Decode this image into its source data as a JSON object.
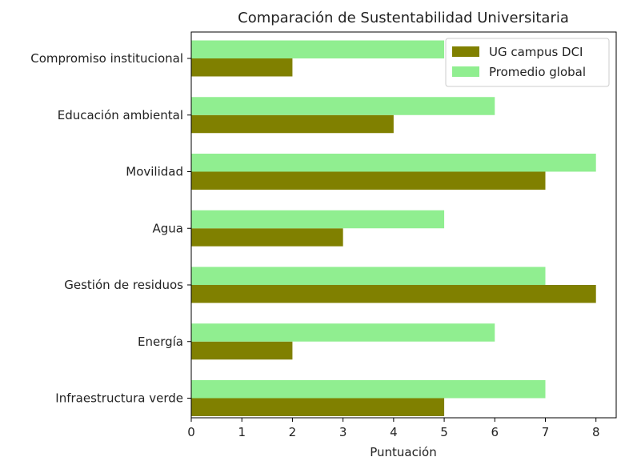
{
  "chart_data": {
    "type": "bar",
    "orientation": "horizontal",
    "title": "Comparación de Sustentabilidad Universitaria",
    "xlabel": "Puntuación",
    "ylabel": "",
    "xlim": [
      0,
      8.4
    ],
    "xticks": [
      0,
      1,
      2,
      3,
      4,
      5,
      6,
      7,
      8
    ],
    "grid": false,
    "legend_position": "top-right",
    "categories": [
      "Infraestructura verde",
      "Energía",
      "Gestión de residuos",
      "Agua",
      "Movilidad",
      "Educación ambiental",
      "Compromiso institucional"
    ],
    "series": [
      {
        "name": "UG campus DCI",
        "color": "#808000",
        "values": [
          5,
          2,
          8,
          3,
          7,
          4,
          2
        ]
      },
      {
        "name": "Promedio global",
        "color": "#90ee90",
        "values": [
          7,
          6,
          7,
          5,
          8,
          6,
          5
        ]
      }
    ]
  }
}
